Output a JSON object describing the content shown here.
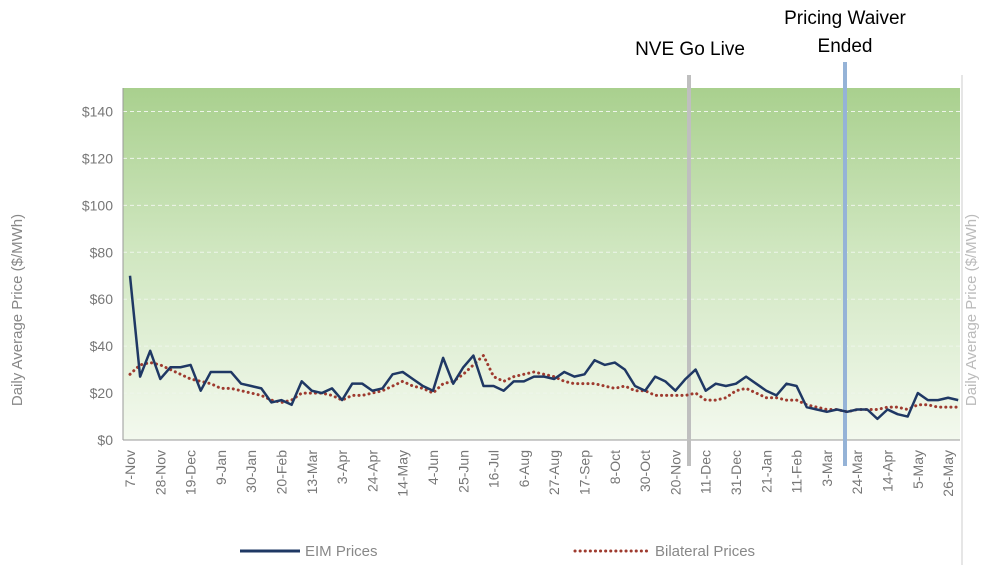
{
  "chart_data": {
    "type": "line",
    "y_label": "Daily Average Price ($/MWh)",
    "categories": [
      "7-Nov",
      null,
      null,
      "28-Nov",
      null,
      null,
      "19-Dec",
      null,
      null,
      "9-Jan",
      null,
      null,
      "30-Jan",
      null,
      null,
      "20-Feb",
      null,
      null,
      "13-Mar",
      null,
      null,
      "3-Apr",
      null,
      null,
      "24-Apr",
      null,
      null,
      "14-May",
      null,
      null,
      "4-Jun",
      null,
      null,
      "25-Jun",
      null,
      null,
      "16-Jul",
      null,
      null,
      "6-Aug",
      null,
      null,
      "27-Aug",
      null,
      null,
      "17-Sep",
      null,
      null,
      "8-Oct",
      null,
      null,
      "30-Oct",
      null,
      null,
      "20-Nov",
      null,
      null,
      "11-Dec",
      null,
      null,
      "31-Dec",
      null,
      null,
      "21-Jan",
      null,
      null,
      "11-Feb",
      null,
      null,
      "3-Mar",
      null,
      null,
      "24-Mar",
      null,
      null,
      "14-Apr",
      null,
      null,
      "5-May",
      null,
      null,
      "26-May",
      null
    ],
    "series": [
      {
        "name": "EIM Prices",
        "color": "#1f3864",
        "style": "solid",
        "values": [
          70,
          27,
          38,
          26,
          31,
          31,
          32,
          21,
          29,
          29,
          29,
          24,
          23,
          22,
          16,
          17,
          15,
          25,
          21,
          20,
          22,
          17,
          24,
          24,
          21,
          22,
          28,
          29,
          26,
          23,
          21,
          35,
          24,
          31,
          36,
          23,
          23,
          21,
          25,
          25,
          27,
          27,
          26,
          29,
          27,
          28,
          34,
          32,
          33,
          30,
          23,
          21,
          27,
          25,
          21,
          26,
          30,
          21,
          24,
          23,
          24,
          27,
          24,
          21,
          19,
          24,
          23,
          14,
          13,
          12,
          13,
          12,
          13,
          13,
          9,
          13,
          11,
          10,
          20,
          17,
          17,
          18,
          17
        ]
      },
      {
        "name": "Bilateral Prices",
        "color": "#9e3b2f",
        "style": "dotted",
        "values": [
          28,
          32,
          33,
          32,
          30,
          28,
          26,
          25,
          24,
          22,
          22,
          21,
          20,
          19,
          17,
          16,
          17,
          20,
          20,
          20,
          19,
          17,
          19,
          19,
          20,
          21,
          23,
          25,
          23,
          22,
          20,
          24,
          25,
          28,
          32,
          36,
          27,
          25,
          27,
          28,
          29,
          28,
          27,
          25,
          24,
          24,
          24,
          23,
          22,
          23,
          21,
          21,
          19,
          19,
          19,
          19,
          20,
          17,
          17,
          18,
          21,
          22,
          20,
          18,
          18,
          17,
          17,
          15,
          14,
          13,
          13,
          12,
          13,
          13,
          13,
          14,
          14,
          13,
          15,
          15,
          14,
          14,
          14
        ]
      }
    ],
    "ylim": [
      0,
      150
    ],
    "yticks": [
      {
        "value": 0,
        "label": "$0"
      },
      {
        "value": 20,
        "label": "$20"
      },
      {
        "value": 40,
        "label": "$40"
      },
      {
        "value": 60,
        "label": "$60"
      },
      {
        "value": 80,
        "label": "$80"
      },
      {
        "value": 100,
        "label": "$100"
      },
      {
        "value": 120,
        "label": "$120"
      },
      {
        "value": 140,
        "label": "$140"
      }
    ],
    "grid": true,
    "legend": "bottom",
    "annotations": [
      {
        "text": "NVE Go Live"
      },
      {
        "text": "Pricing Waiver Ended"
      }
    ]
  }
}
